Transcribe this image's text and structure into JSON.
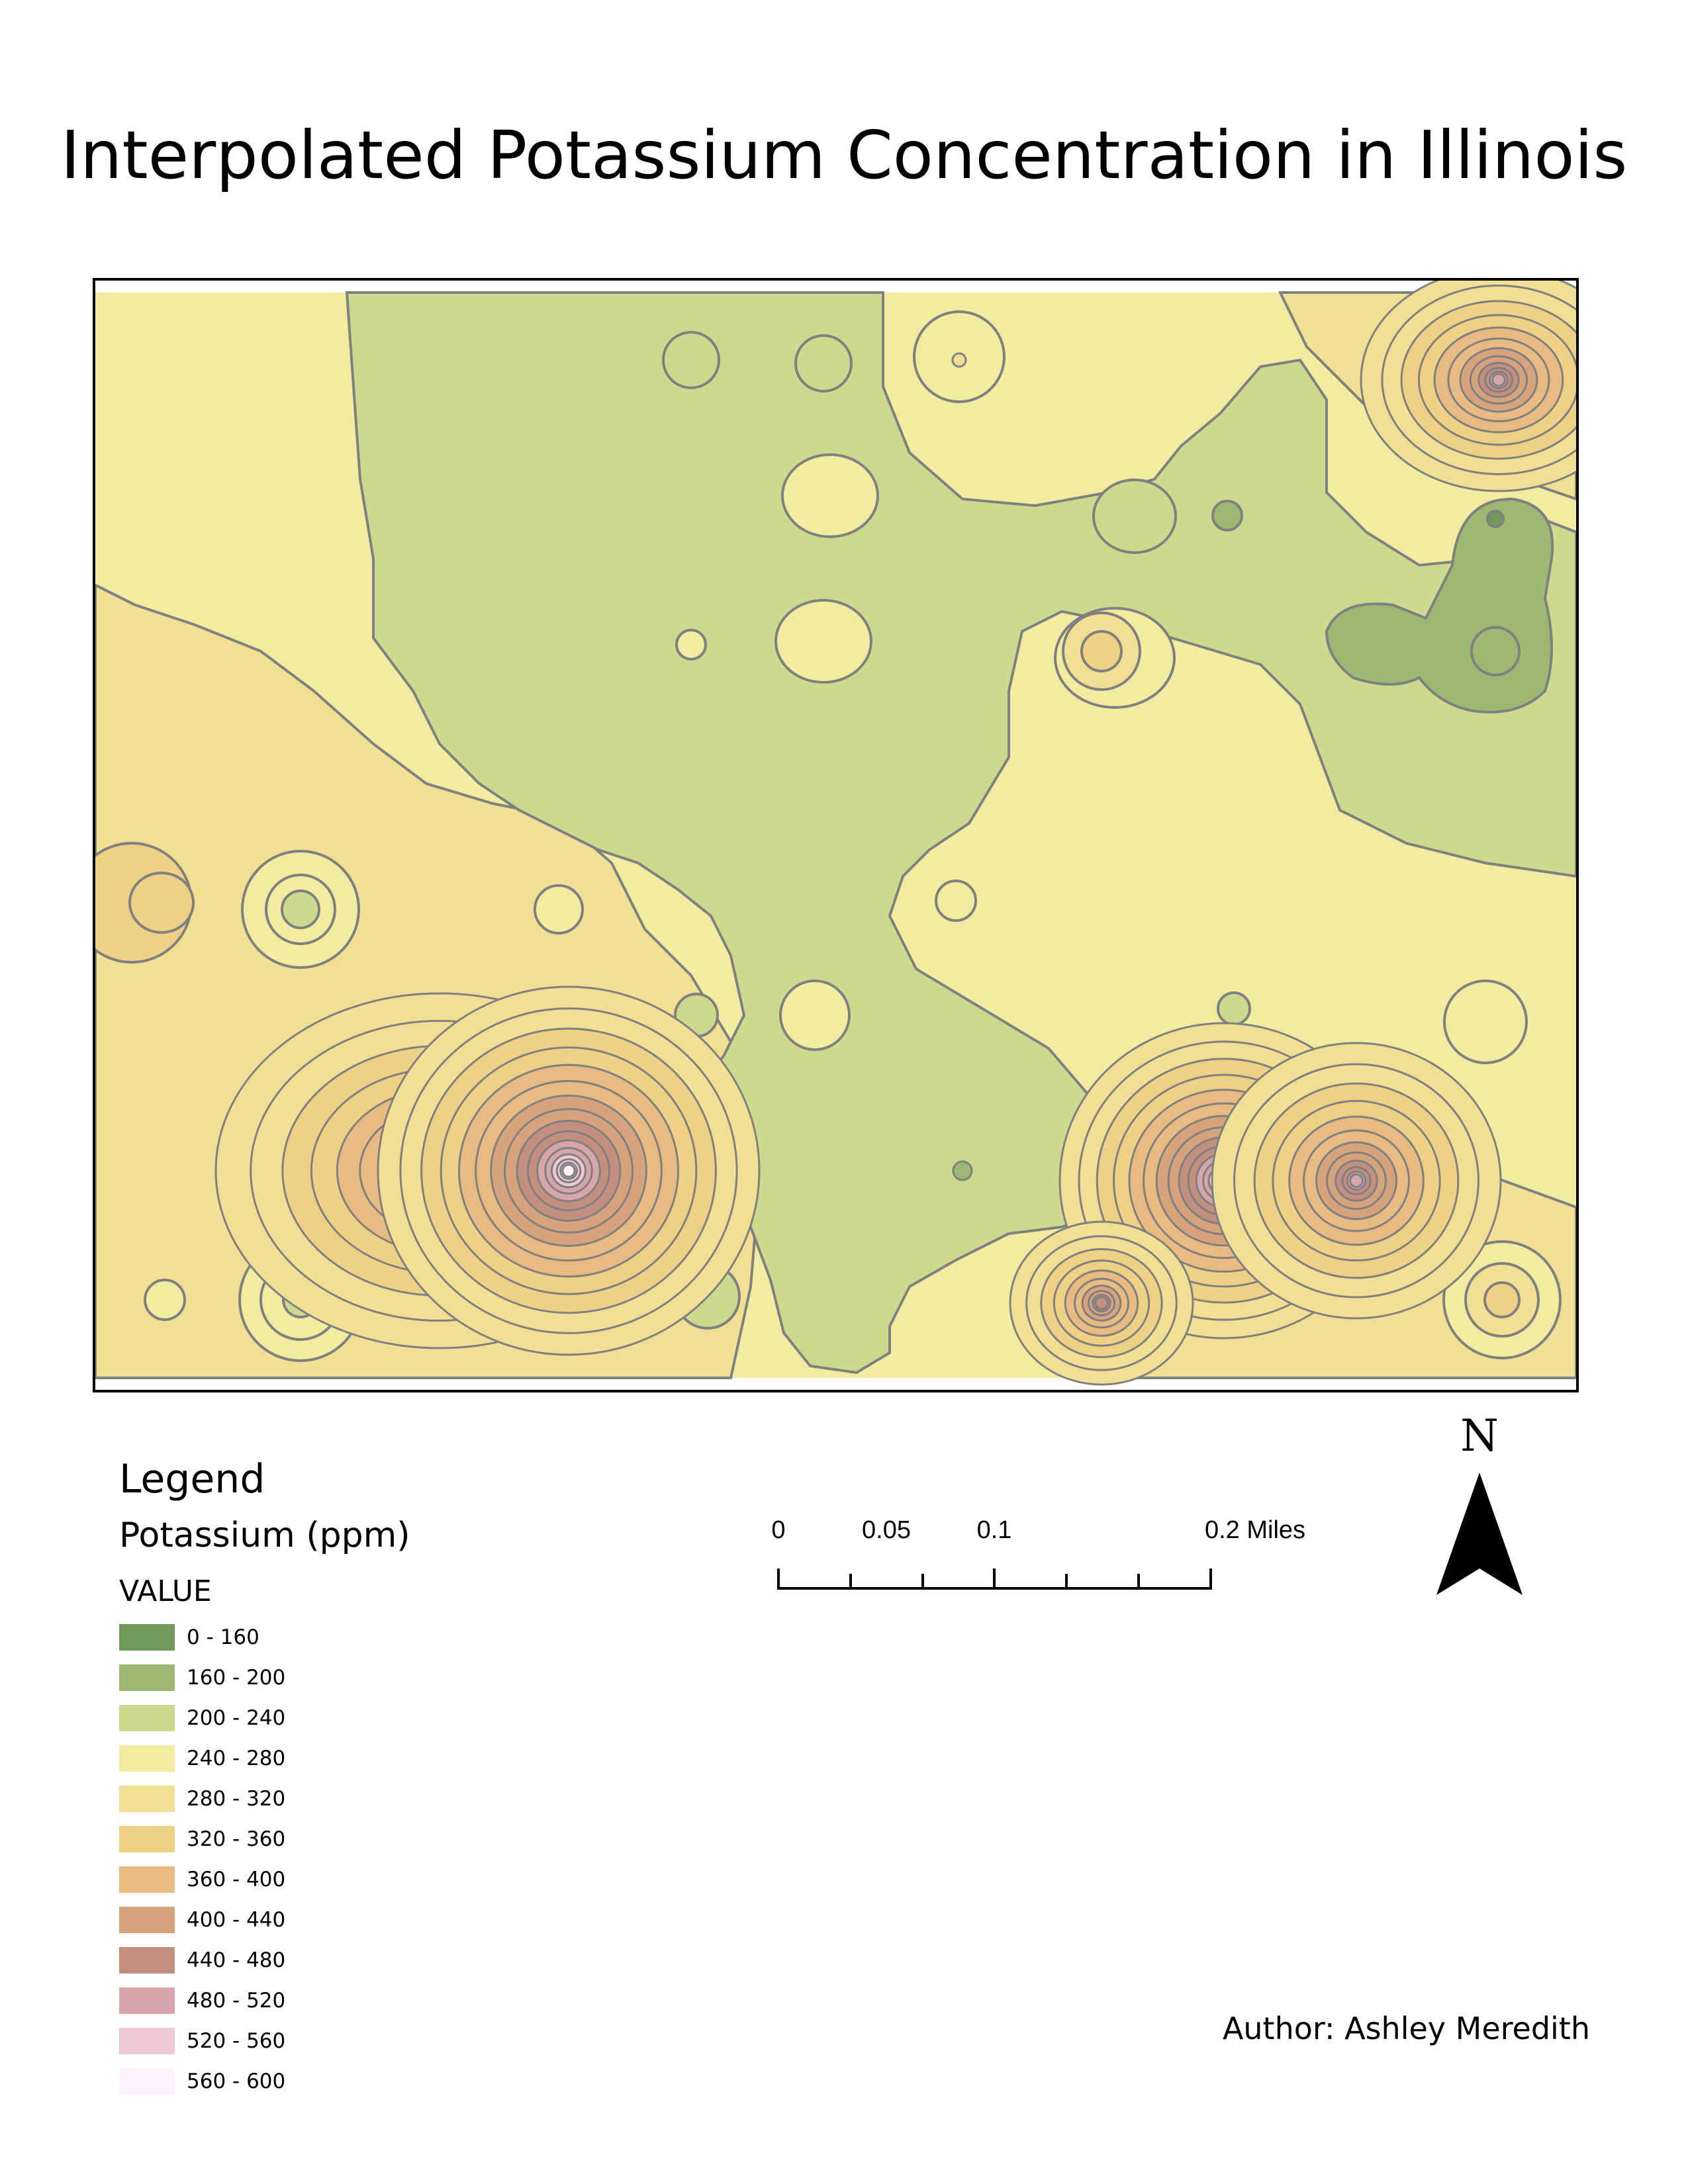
{
  "title": "Interpolated Potassium Concentration in Illinois",
  "legend": {
    "title": "Legend",
    "layer_name": "Potassium (ppm)",
    "field_name": "VALUE",
    "classes": [
      {
        "label": "0 - 160",
        "color": "#709a5b"
      },
      {
        "label": "160 - 200",
        "color": "#9cb872"
      },
      {
        "label": "200 - 240",
        "color": "#cdda8e"
      },
      {
        "label": "240 - 280",
        "color": "#f1eca0"
      },
      {
        "label": "280 - 320",
        "color": "#f1df93"
      },
      {
        "label": "320 - 360",
        "color": "#efd186"
      },
      {
        "label": "360 - 400",
        "color": "#e8bb83"
      },
      {
        "label": "400 - 440",
        "color": "#d6a37d"
      },
      {
        "label": "440 - 480",
        "color": "#c48f7e"
      },
      {
        "label": "480 - 520",
        "color": "#d7a5aa"
      },
      {
        "label": "520 - 560",
        "color": "#ecc9d5"
      },
      {
        "label": "560 - 600",
        "color": "#fff2fc"
      }
    ]
  },
  "scale_bar": {
    "unit": "Miles",
    "tick_values": [
      0,
      0.05,
      0.1,
      0.2
    ],
    "labels": [
      "0",
      "0.05",
      "0.1",
      "0.2 Miles"
    ]
  },
  "north_arrow": {
    "letter": "N",
    "icon": "north-arrow-icon"
  },
  "author": "Author: Ashley Meredith",
  "map_style": {
    "contour_color": "#808080"
  },
  "hotspots": [
    {
      "name": "west-peak-left",
      "max_class": "480 - 520"
    },
    {
      "name": "west-peak-right",
      "max_class": "560 - 600"
    },
    {
      "name": "east-peak-left",
      "max_class": "560 - 600"
    },
    {
      "name": "east-peak-right",
      "max_class": "480 - 520"
    },
    {
      "name": "northeast-peak",
      "max_class": "480 - 520"
    },
    {
      "name": "south-peak",
      "max_class": "440 - 480"
    }
  ]
}
